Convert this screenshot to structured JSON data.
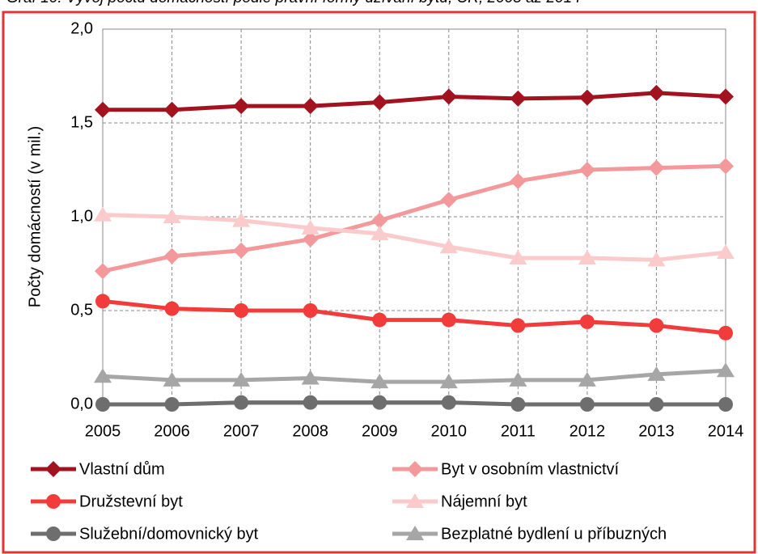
{
  "chart_data": {
    "type": "line",
    "title": "Graf 10: Vývoj počtu domácností podle právní formy užívání bytu, ČR, 2005 až 2014",
    "ylabel": "Počty domácností (v mil.)",
    "categories": [
      "2005",
      "2006",
      "2007",
      "2008",
      "2009",
      "2010",
      "2011",
      "2012",
      "2013",
      "2014"
    ],
    "ylim": [
      0,
      2
    ],
    "yticks": [
      {
        "value": 0,
        "label": "0,0"
      },
      {
        "value": 0.5,
        "label": "0,5"
      },
      {
        "value": 1,
        "label": "1,0"
      },
      {
        "value": 1.5,
        "label": "1,5"
      },
      {
        "value": 2,
        "label": "2,0"
      }
    ],
    "grid": true,
    "series": [
      {
        "name": "Vlastní dům",
        "color": "#a3121f",
        "marker": "diamond",
        "values": [
          1.57,
          1.57,
          1.59,
          1.59,
          1.61,
          1.64,
          1.63,
          1.635,
          1.66,
          1.64
        ]
      },
      {
        "name": "Byt v osobním vlastnictví",
        "color": "#f4999b",
        "marker": "diamond",
        "values": [
          0.71,
          0.79,
          0.82,
          0.88,
          0.98,
          1.09,
          1.19,
          1.25,
          1.26,
          1.27
        ]
      },
      {
        "name": "Družstevní byt",
        "color": "#f23b3b",
        "marker": "circle",
        "values": [
          0.55,
          0.51,
          0.5,
          0.5,
          0.45,
          0.45,
          0.42,
          0.44,
          0.42,
          0.38
        ]
      },
      {
        "name": "Nájemní byt",
        "color": "#fbcaca",
        "marker": "triangle",
        "values": [
          1.01,
          1.0,
          0.98,
          0.94,
          0.91,
          0.84,
          0.78,
          0.78,
          0.77,
          0.81
        ]
      },
      {
        "name": "Služební/domovnický byt",
        "color": "#6e6e6e",
        "marker": "circle",
        "values": [
          0.0,
          0.0,
          0.01,
          0.01,
          0.01,
          0.01,
          0.0,
          0.0,
          0.0,
          0.0
        ]
      },
      {
        "name": "Bezplatné bydlení u příbuzných",
        "color": "#a6a6a6",
        "marker": "triangle",
        "values": [
          0.15,
          0.13,
          0.13,
          0.14,
          0.12,
          0.12,
          0.13,
          0.13,
          0.16,
          0.18
        ]
      }
    ]
  }
}
